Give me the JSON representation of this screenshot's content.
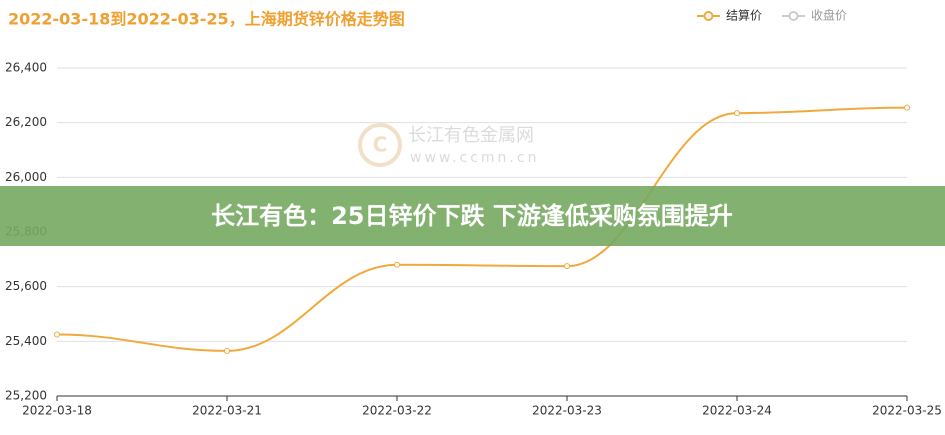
{
  "chart_data": {
    "type": "line",
    "title": "2022-03-18到2022-03-25，上海期货锌价格走势图",
    "categories": [
      "2022-03-18",
      "2022-03-21",
      "2022-03-22",
      "2022-03-23",
      "2022-03-24",
      "2022-03-25"
    ],
    "series": [
      {
        "name": "结算价",
        "color": "#f2a93b",
        "values": [
          25425,
          25365,
          25680,
          25675,
          26235,
          26255
        ]
      },
      {
        "name": "收盘价",
        "color": "#cccccc",
        "values": [
          null,
          null,
          null,
          null,
          null,
          null
        ]
      }
    ],
    "ylim": [
      25200,
      26400
    ],
    "yticks": [
      {
        "value": 25200,
        "label": "25,200"
      },
      {
        "value": 25400,
        "label": "25,400"
      },
      {
        "value": 25600,
        "label": "25,600"
      },
      {
        "value": 25800,
        "label": "25,800"
      },
      {
        "value": 26000,
        "label": "26,000"
      },
      {
        "value": 26200,
        "label": "26,200"
      },
      {
        "value": 26400,
        "label": "26,400"
      }
    ],
    "grid": true,
    "legend": "top-right",
    "watermark": [
      "长江有色金属网",
      "www.ccmn.cn"
    ],
    "banner": "长江有色：25日锌价下跌 下游逢低采购氛围提升"
  }
}
